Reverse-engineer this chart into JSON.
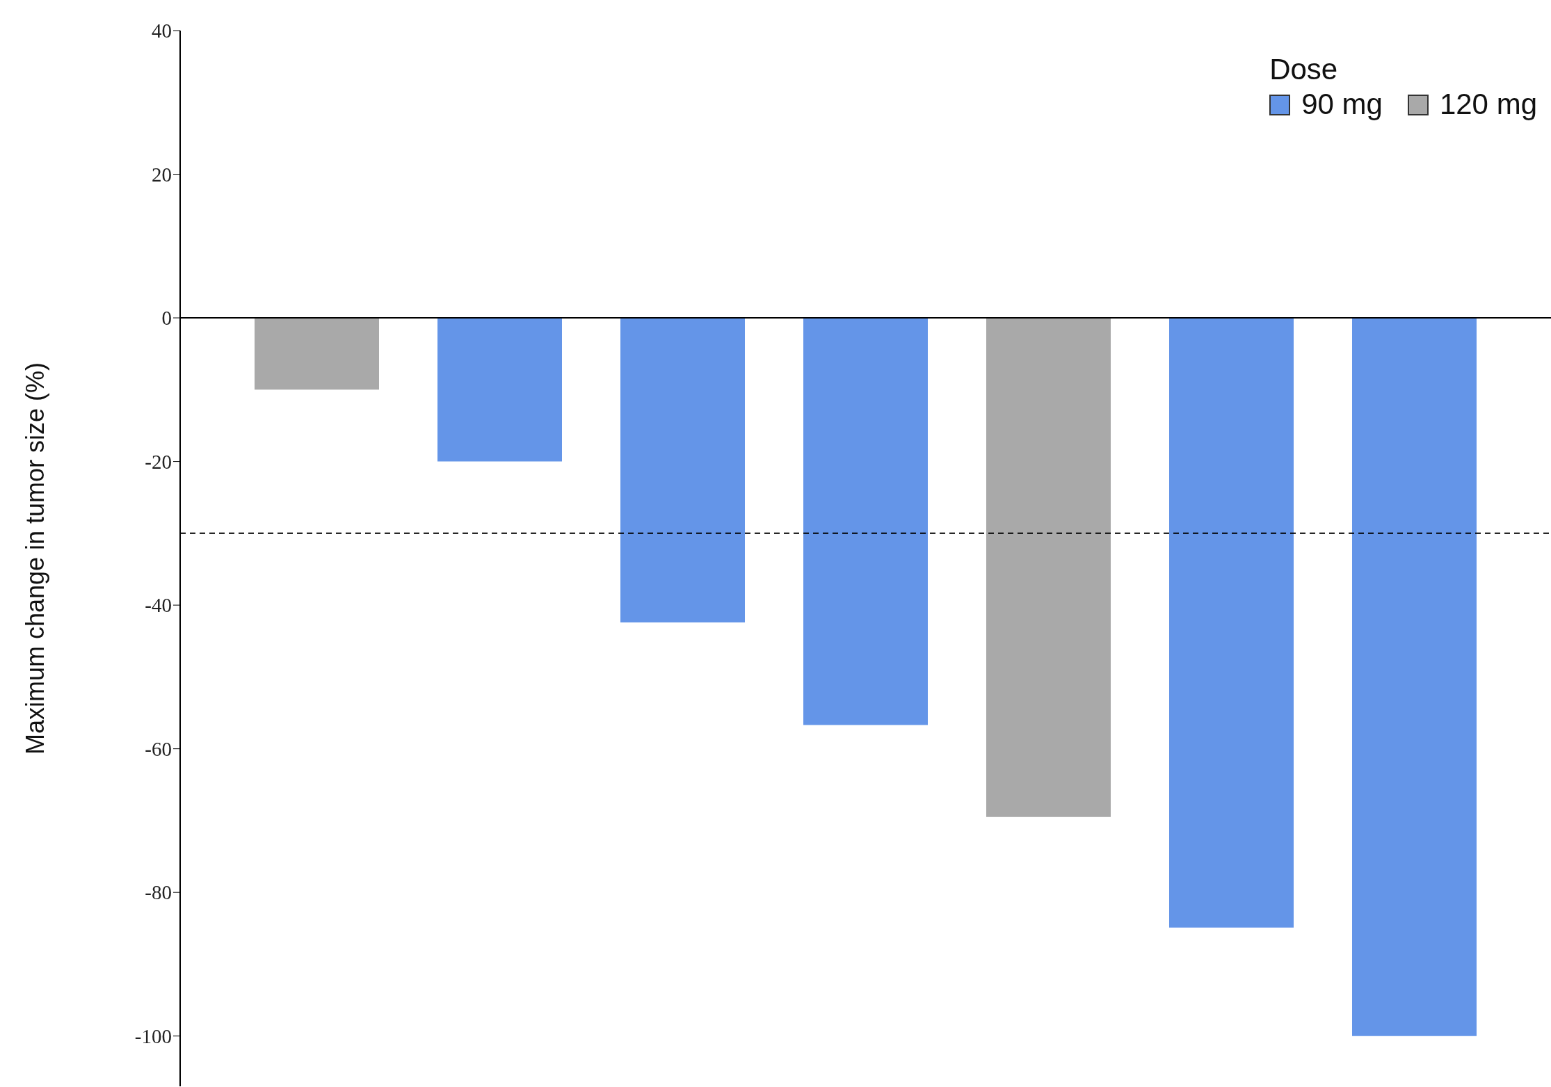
{
  "chart_data": {
    "type": "bar",
    "ylabel": "Maximum change in tumor size (%)",
    "legend_title": "Dose",
    "categories": [
      null,
      null,
      null,
      null,
      null,
      null,
      null
    ],
    "series": [
      {
        "name": "90 mg",
        "color": "#6495e8",
        "values": [
          null,
          -20,
          -42.4,
          -56.7,
          null,
          -84.9,
          -100
        ]
      },
      {
        "name": "120 mg",
        "color": "#a9a9a9",
        "values": [
          -10,
          null,
          null,
          null,
          -69.5,
          null,
          null
        ]
      }
    ],
    "stacked": true,
    "ylim": [
      -107,
      40
    ],
    "yticks": [
      -100,
      -80,
      -60,
      -40,
      -20,
      0,
      20,
      40
    ],
    "grid": false,
    "legend": "top right",
    "ref_lines": [
      {
        "axis": "y",
        "value": 0,
        "color": "#000000",
        "line_style": "solid"
      },
      {
        "axis": "y",
        "value": -30,
        "color": "#000000",
        "line_style": "dashed"
      }
    ]
  }
}
